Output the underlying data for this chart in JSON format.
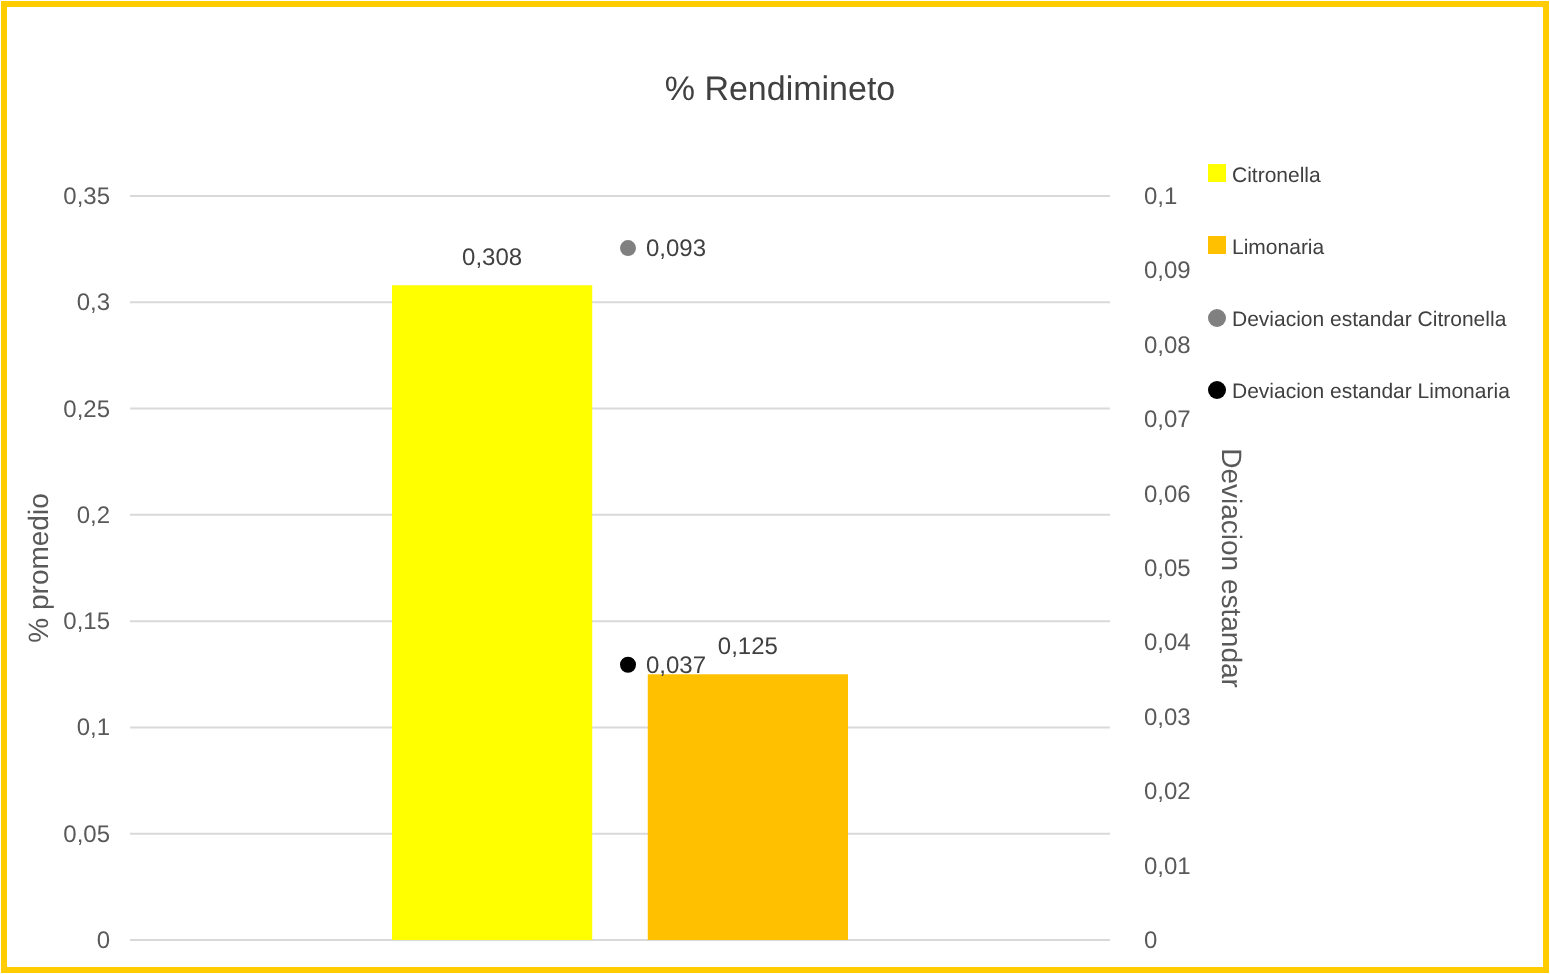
{
  "chart_data": {
    "type": "bar",
    "title": "% Rendimineto",
    "ylabel": "% promedio",
    "y2label": "Deviacion estandar",
    "categories": [
      null
    ],
    "series": [
      {
        "name": "Citronella",
        "color": "#ffff00",
        "values": [
          0.308
        ],
        "value_labels": [
          "0,308"
        ]
      },
      {
        "name": "Limonaria",
        "color": "#ffc000",
        "values": [
          0.125
        ],
        "value_labels": [
          "0,125"
        ]
      },
      {
        "name": "Deviacion estandar Citronella",
        "type": "scatter",
        "axis": "y2",
        "color": "#808080",
        "values": [
          0.093
        ],
        "value_labels": [
          "0,093"
        ]
      },
      {
        "name": "Deviacion estandar Limonaria",
        "type": "scatter",
        "axis": "y2",
        "color": "#000000",
        "values": [
          0.037
        ],
        "value_labels": [
          "0,037"
        ]
      }
    ],
    "ylim": [
      0,
      0.35
    ],
    "yticks": [
      0,
      {
        "value": 0.05,
        "label": "0,05"
      },
      {
        "value": 0.1,
        "label": "0,1"
      },
      {
        "value": 0.15,
        "label": "0,15"
      },
      {
        "value": 0.2,
        "label": "0,2"
      },
      {
        "value": 0.25,
        "label": "0,25"
      },
      {
        "value": 0.3,
        "label": "0,3"
      },
      {
        "value": 0.35,
        "label": "0,35"
      }
    ],
    "y2lim": [
      0,
      0.1
    ],
    "y2ticks": [
      0,
      {
        "value": 0.01,
        "label": "0,01"
      },
      {
        "value": 0.02,
        "label": "0,02"
      },
      {
        "value": 0.03,
        "label": "0,03"
      },
      {
        "value": 0.04,
        "label": "0,04"
      },
      {
        "value": 0.05,
        "label": "0,05"
      },
      {
        "value": 0.06,
        "label": "0,06"
      },
      {
        "value": 0.07,
        "label": "0,07"
      },
      {
        "value": 0.08,
        "label": "0,08"
      },
      {
        "value": 0.09,
        "label": "0,09"
      },
      {
        "value": 0.1,
        "label": "0,1"
      }
    ],
    "grid": "y",
    "legend": "right",
    "marker": "circle"
  }
}
